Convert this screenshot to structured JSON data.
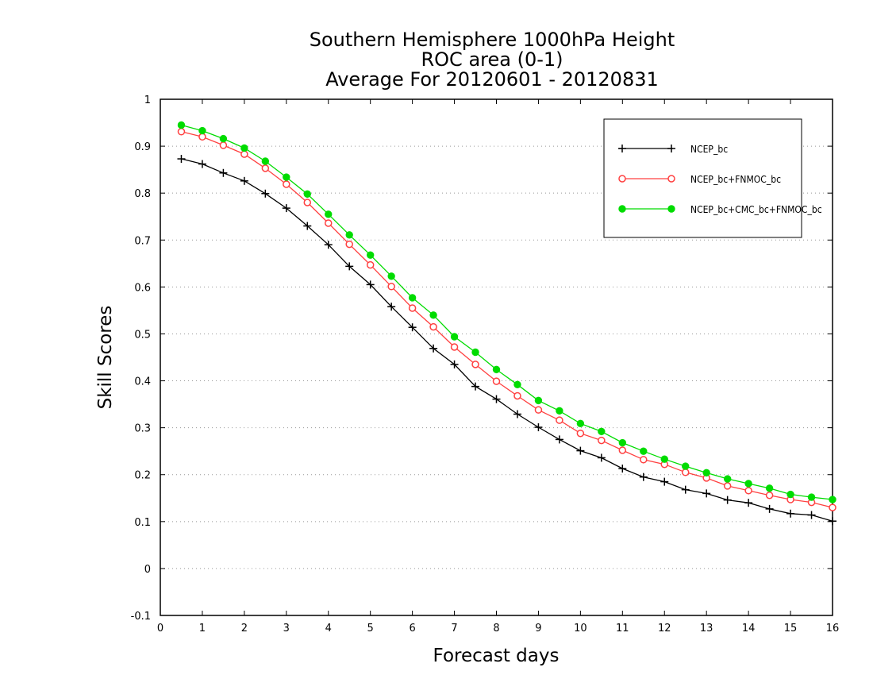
{
  "chart_data": {
    "type": "line",
    "title_lines": [
      "Southern Hemisphere 1000hPa Height",
      "ROC area (0-1)",
      "Average For 20120601 - 20120831"
    ],
    "xlabel": "Forecast days",
    "ylabel": "Skill Scores",
    "xlim": [
      0,
      16
    ],
    "ylim": [
      -0.1,
      1
    ],
    "x_ticks": [
      "0",
      "1",
      "2",
      "3",
      "4",
      "5",
      "6",
      "7",
      "8",
      "9",
      "10",
      "11",
      "12",
      "13",
      "14",
      "15",
      "16"
    ],
    "y_ticks": [
      "-0.1",
      "0",
      "0.1",
      "0.2",
      "0.3",
      "0.4",
      "0.5",
      "0.6",
      "0.7",
      "0.8",
      "0.9",
      "1"
    ],
    "grid": "horizontal dotted",
    "legend_position": "top-right",
    "x": [
      0.5,
      1,
      1.5,
      2,
      2.5,
      3,
      3.5,
      4,
      4.5,
      5,
      5.5,
      6,
      6.5,
      7,
      7.5,
      8,
      8.5,
      9,
      9.5,
      10,
      10.5,
      11,
      11.5,
      12,
      12.5,
      13,
      13.5,
      14,
      14.5,
      15,
      15.5,
      16
    ],
    "series": [
      {
        "name": "NCEP_bc",
        "color": "#000000",
        "marker": "plus",
        "values": [
          0.873,
          0.862,
          0.843,
          0.826,
          0.799,
          0.768,
          0.73,
          0.69,
          0.644,
          0.605,
          0.558,
          0.514,
          0.469,
          0.435,
          0.388,
          0.361,
          0.329,
          0.301,
          0.275,
          0.251,
          0.236,
          0.213,
          0.195,
          0.185,
          0.168,
          0.16,
          0.146,
          0.14,
          0.127,
          0.117,
          0.114,
          0.101
        ]
      },
      {
        "name": "NCEP_bc+FNMOC_bc",
        "color": "#ff4040",
        "marker": "open-circle",
        "values": [
          0.931,
          0.92,
          0.902,
          0.883,
          0.853,
          0.819,
          0.78,
          0.736,
          0.691,
          0.647,
          0.601,
          0.555,
          0.515,
          0.472,
          0.435,
          0.399,
          0.368,
          0.338,
          0.316,
          0.288,
          0.273,
          0.252,
          0.232,
          0.222,
          0.205,
          0.193,
          0.176,
          0.166,
          0.156,
          0.147,
          0.141,
          0.13
        ]
      },
      {
        "name": "NCEP_bc+CMC_bc+FNMOC_bc",
        "color": "#00dc00",
        "marker": "filled-circle",
        "values": [
          0.945,
          0.933,
          0.916,
          0.896,
          0.868,
          0.834,
          0.798,
          0.755,
          0.711,
          0.668,
          0.623,
          0.577,
          0.54,
          0.494,
          0.461,
          0.424,
          0.392,
          0.358,
          0.336,
          0.309,
          0.292,
          0.268,
          0.25,
          0.233,
          0.218,
          0.204,
          0.191,
          0.181,
          0.171,
          0.158,
          0.152,
          0.147
        ]
      }
    ]
  }
}
